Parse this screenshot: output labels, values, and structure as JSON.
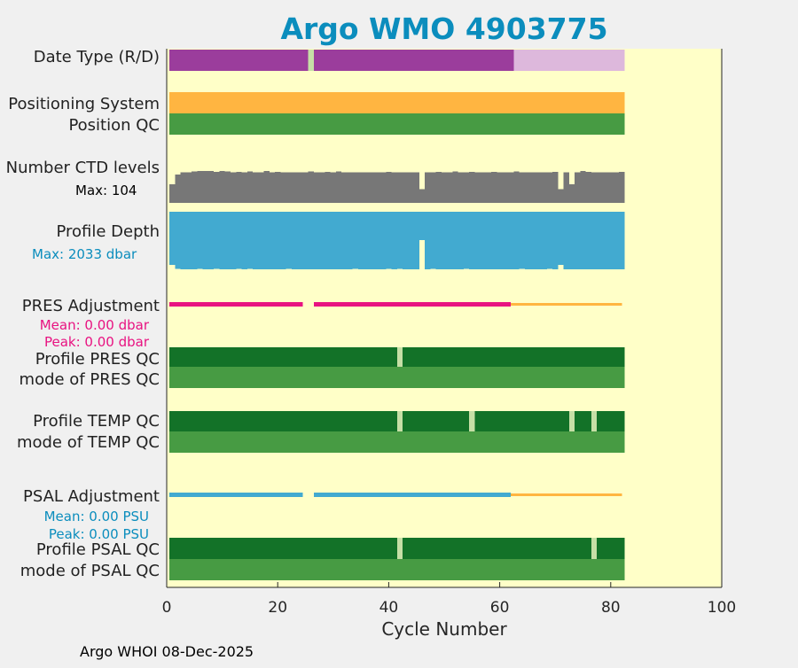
{
  "colors": {
    "background": "#f0f0f0",
    "plot_background": "#ffffc8",
    "title": "#0b8dbd",
    "date_type_real": "#9b3d9c",
    "date_type_delayed": "#ddb8dc",
    "positioning_system": "#ffb541",
    "position_qc": "#479b43",
    "ctd_levels": "#777777",
    "profile_depth": "#42aad0",
    "pres_adjustment": "#e81381",
    "salinity_adjustment": "#42aad0",
    "no_adjustment": "#ffb541",
    "profile_qc": "#137228",
    "mode_qc": "#479b43",
    "qc_gap": "#c6dfa6",
    "pres_text": "#e81381",
    "psal_text": "#0b8dbd",
    "depth_text": "#0b8dbd"
  },
  "chart_data": {
    "type": "bar",
    "title": "Argo WMO 4903775",
    "xlabel": "Cycle Number",
    "xlim": [
      0,
      100
    ],
    "xticks": [
      0,
      20,
      40,
      60,
      80,
      100
    ],
    "footer": "Argo WHOI 08-Dec-2025",
    "cycles_end": 82.5,
    "rows": {
      "date_type": {
        "label": "Date Type (R/D)",
        "segments": [
          {
            "from": 0.5,
            "to": 25.5,
            "kind": "real"
          },
          {
            "from": 26.5,
            "to": 62.5,
            "kind": "real"
          },
          {
            "from": 62.5,
            "to": 82.5,
            "kind": "delayed"
          }
        ],
        "missing_cycles": [
          26
        ]
      },
      "positioning_system": {
        "label": "Positioning System",
        "from": 0.5,
        "to": 82.5
      },
      "position_qc": {
        "label": "Position QC",
        "from": 0.5,
        "to": 82.5
      },
      "ctd_levels": {
        "label": "Number CTD levels",
        "max_label": "Max: 104",
        "max": 104,
        "values": [
          60,
          93,
          100,
          100,
          103,
          104,
          104,
          104,
          101,
          104,
          102,
          100,
          101,
          100,
          102,
          100,
          100,
          104,
          100,
          101,
          100,
          100,
          100,
          100,
          100,
          102,
          100,
          100,
          101,
          100,
          103,
          100,
          100,
          100,
          100,
          100,
          100,
          100,
          100,
          101,
          100,
          100,
          100,
          100,
          100,
          45,
          100,
          100,
          101,
          100,
          100,
          103,
          100,
          100,
          101,
          100,
          100,
          100,
          101,
          100,
          100,
          100,
          103,
          100,
          100,
          100,
          100,
          100,
          100,
          101,
          45,
          100,
          60,
          100,
          104,
          101,
          100,
          100,
          100,
          100,
          100,
          101
        ]
      },
      "profile_depth": {
        "label": "Profile Depth",
        "max_label": "Max: 2033 dbar",
        "max_dbar": 2033,
        "values": [
          1870,
          2010,
          2033,
          2033,
          2033,
          2018,
          2033,
          2033,
          2021,
          2033,
          2033,
          2033,
          2018,
          2033,
          2021,
          2033,
          2033,
          2033,
          2033,
          2033,
          2033,
          2017,
          2033,
          2033,
          2033,
          2033,
          2033,
          2033,
          2033,
          2033,
          2033,
          2033,
          2033,
          2018,
          2033,
          2033,
          2033,
          2033,
          2033,
          2020,
          2033,
          2018,
          2033,
          2033,
          2033,
          1000,
          2033,
          2016,
          2033,
          2033,
          2033,
          2033,
          2033,
          2020,
          2033,
          2033,
          2033,
          2033,
          2033,
          2033,
          2033,
          2033,
          2033,
          2016,
          2033,
          2033,
          2033,
          2033,
          2018,
          2033,
          1875,
          2033,
          2033,
          2033,
          2033,
          2033,
          2033,
          2033,
          2033,
          2033,
          2033,
          2033
        ]
      },
      "pres_adjustment": {
        "label": "PRES Adjustment",
        "mean_label": "Mean: 0.00 dbar",
        "peak_label": "Peak: 0.00 dbar",
        "adjusted_segments": [
          {
            "from": 0.5,
            "to": 24.5
          },
          {
            "from": 26.5,
            "to": 62.0
          }
        ],
        "unadjusted_segments": [
          {
            "from": 62.0,
            "to": 82.0
          }
        ]
      },
      "profile_pres_qc": {
        "label": "Profile PRES QC",
        "from": 0.5,
        "to": 82.5,
        "missing_cycles": [
          42
        ]
      },
      "mode_pres_qc": {
        "label": "mode of PRES QC",
        "from": 0.5,
        "to": 82.5
      },
      "profile_temp_qc": {
        "label": "Profile TEMP QC",
        "from": 0.5,
        "to": 82.5,
        "missing_cycles": [
          42,
          55,
          73,
          77
        ]
      },
      "mode_temp_qc": {
        "label": "mode of TEMP QC",
        "from": 0.5,
        "to": 82.5
      },
      "psal_adjustment": {
        "label": "PSAL Adjustment",
        "mean_label": "Mean: 0.00 PSU",
        "peak_label": "Peak: 0.00 PSU",
        "adjusted_segments": [
          {
            "from": 0.5,
            "to": 24.5
          },
          {
            "from": 26.5,
            "to": 62.0
          }
        ],
        "unadjusted_segments": [
          {
            "from": 62.0,
            "to": 82.0
          }
        ]
      },
      "profile_psal_qc": {
        "label": "Profile PSAL QC",
        "from": 0.5,
        "to": 82.5,
        "missing_cycles": [
          42,
          77
        ]
      },
      "mode_psal_qc": {
        "label": "mode of PSAL QC",
        "from": 0.5,
        "to": 82.5
      }
    }
  }
}
